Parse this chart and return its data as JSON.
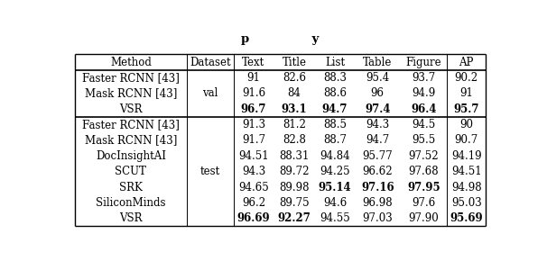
{
  "header": [
    "Method",
    "Dataset",
    "Text",
    "Title",
    "List",
    "Table",
    "Figure",
    "AP"
  ],
  "val_rows": [
    [
      "Faster RCNN [43]",
      "",
      "91",
      "82.6",
      "88.3",
      "95.4",
      "93.7",
      "90.2"
    ],
    [
      "Mask RCNN [43]",
      "val",
      "91.6",
      "84",
      "88.6",
      "96",
      "94.9",
      "91"
    ],
    [
      "VSR",
      "",
      "96.7",
      "93.1",
      "94.7",
      "97.4",
      "96.4",
      "95.7"
    ]
  ],
  "val_bold": [
    [
      false,
      false,
      false,
      false,
      false,
      false,
      false,
      false
    ],
    [
      false,
      false,
      false,
      false,
      false,
      false,
      false,
      false
    ],
    [
      false,
      false,
      true,
      true,
      true,
      true,
      true,
      true
    ]
  ],
  "test_rows": [
    [
      "Faster RCNN [43]",
      "",
      "91.3",
      "81.2",
      "88.5",
      "94.3",
      "94.5",
      "90"
    ],
    [
      "Mask RCNN [43]",
      "",
      "91.7",
      "82.8",
      "88.7",
      "94.7",
      "95.5",
      "90.7"
    ],
    [
      "DocInsightAI",
      "",
      "94.51",
      "88.31",
      "94.84",
      "95.77",
      "97.52",
      "94.19"
    ],
    [
      "SCUT",
      "test",
      "94.3",
      "89.72",
      "94.25",
      "96.62",
      "97.68",
      "94.51"
    ],
    [
      "SRK",
      "",
      "94.65",
      "89.98",
      "95.14",
      "97.16",
      "97.95",
      "94.98"
    ],
    [
      "SiliconMinds",
      "",
      "96.2",
      "89.75",
      "94.6",
      "96.98",
      "97.6",
      "95.03"
    ],
    [
      "VSR",
      "",
      "96.69",
      "92.27",
      "94.55",
      "97.03",
      "97.90",
      "95.69"
    ]
  ],
  "test_bold": [
    [
      false,
      false,
      false,
      false,
      false,
      false,
      false,
      false
    ],
    [
      false,
      false,
      false,
      false,
      false,
      false,
      false,
      false
    ],
    [
      false,
      false,
      false,
      false,
      false,
      false,
      false,
      false
    ],
    [
      false,
      false,
      false,
      false,
      false,
      false,
      false,
      false
    ],
    [
      false,
      false,
      false,
      false,
      true,
      true,
      true,
      false
    ],
    [
      false,
      false,
      false,
      false,
      false,
      false,
      false,
      false
    ],
    [
      false,
      false,
      true,
      true,
      false,
      false,
      false,
      true
    ]
  ],
  "title_stub": "p               y",
  "font_size": 8.5,
  "bg_color": "#ffffff",
  "line_color": "#000000"
}
